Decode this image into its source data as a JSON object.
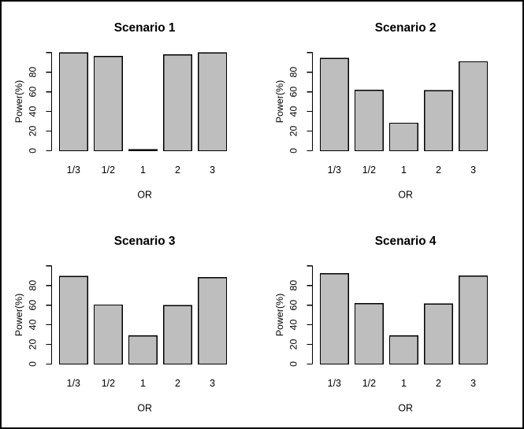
{
  "figure": {
    "description": "2x2 grid of R-style barplots of statistical power by odds ratio",
    "background": "#ffffff",
    "frame_color": "#000000"
  },
  "colors": {
    "bar_fill": "#bebebe",
    "bar_border": "#000000",
    "axis": "#000000",
    "text": "#000000"
  },
  "chart_data": [
    {
      "type": "bar",
      "title": "Scenario 1",
      "categories": [
        "1/3",
        "1/2",
        "1",
        "2",
        "3"
      ],
      "values": [
        99.5,
        96,
        1,
        97.5,
        99.5
      ],
      "xlabel": "OR",
      "ylabel": "Power(%)",
      "ylim": [
        0,
        100
      ],
      "yticks": [
        0,
        20,
        40,
        60,
        80
      ],
      "grid": false,
      "legend": false
    },
    {
      "type": "bar",
      "title": "Scenario 2",
      "categories": [
        "1/3",
        "1/2",
        "1",
        "2",
        "3"
      ],
      "values": [
        94,
        61.5,
        28,
        61,
        90.5
      ],
      "xlabel": "OR",
      "ylabel": "Power(%)",
      "ylim": [
        0,
        100
      ],
      "yticks": [
        0,
        20,
        40,
        60,
        80
      ],
      "grid": false,
      "legend": false
    },
    {
      "type": "bar",
      "title": "Scenario 3",
      "categories": [
        "1/3",
        "1/2",
        "1",
        "2",
        "3"
      ],
      "values": [
        89,
        60,
        28.5,
        59.5,
        88
      ],
      "xlabel": "OR",
      "ylabel": "Power(%)",
      "ylim": [
        0,
        100
      ],
      "yticks": [
        0,
        20,
        40,
        60,
        80
      ],
      "grid": false,
      "legend": false
    },
    {
      "type": "bar",
      "title": "Scenario 4",
      "categories": [
        "1/3",
        "1/2",
        "1",
        "2",
        "3"
      ],
      "values": [
        92,
        61.5,
        28.5,
        61,
        89.5
      ],
      "xlabel": "OR",
      "ylabel": "Power(%)",
      "ylim": [
        0,
        100
      ],
      "yticks": [
        0,
        20,
        40,
        60,
        80
      ],
      "grid": false,
      "legend": false
    }
  ]
}
